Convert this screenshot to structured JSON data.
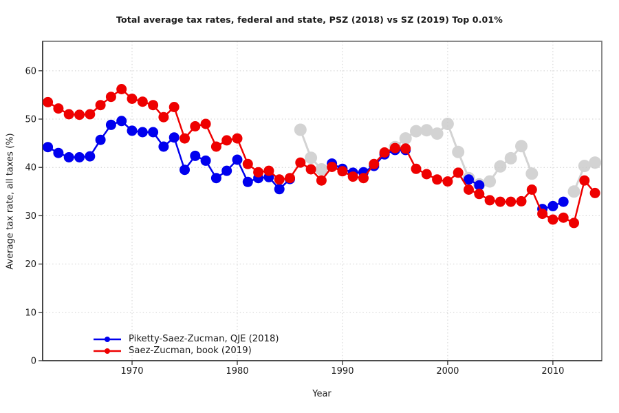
{
  "page": {
    "background": "#ffffff"
  },
  "chart_data": {
    "type": "line",
    "title": "Total average tax rates, federal and state, PSZ (2018) vs SZ (2019) Top 0.01%",
    "xlabel": "Year",
    "ylabel": "Average tax rate, all taxes (%)",
    "xlim": [
      1961.5,
      2014.65
    ],
    "ylim": [
      0,
      66.1
    ],
    "xticks": [
      1970,
      1980,
      1990,
      2000,
      2010
    ],
    "yticks": [
      0,
      10,
      20,
      30,
      40,
      50,
      60
    ],
    "grid": "dotted",
    "legend_position": "bottom-left",
    "years": [
      1962,
      1963,
      1964,
      1965,
      1966,
      1967,
      1968,
      1969,
      1970,
      1971,
      1972,
      1973,
      1974,
      1975,
      1976,
      1977,
      1978,
      1979,
      1980,
      1981,
      1982,
      1983,
      1984,
      1985,
      1986,
      1987,
      1988,
      1989,
      1990,
      1991,
      1992,
      1993,
      1994,
      1995,
      1996,
      1997,
      1998,
      1999,
      2000,
      2001,
      2002,
      2003,
      2004,
      2005,
      2006,
      2007,
      2008,
      2009,
      2010,
      2011,
      2012,
      2013,
      2014
    ],
    "series": [
      {
        "name": "unlabeled-gray",
        "in_legend": false,
        "color": "#c9c9c9",
        "opacity": 0.8,
        "line_width": 3,
        "marker_radius": 9,
        "values": [
          null,
          null,
          null,
          null,
          null,
          null,
          null,
          null,
          null,
          null,
          null,
          null,
          null,
          null,
          null,
          null,
          null,
          null,
          null,
          null,
          null,
          null,
          null,
          null,
          47.8,
          42.0,
          39.6,
          null,
          null,
          null,
          null,
          null,
          null,
          44.2,
          46.0,
          47.5,
          47.7,
          47.0,
          49.0,
          43.2,
          37.8,
          36.5,
          37.1,
          40.2,
          41.9,
          44.4,
          38.7,
          null,
          null,
          null,
          35.0,
          40.3,
          41.0
        ]
      },
      {
        "name": "Piketty-Saez-Zucman, QJE (2018)",
        "in_legend": true,
        "color": "#0000ee",
        "opacity": 1,
        "line_width": 2.5,
        "marker_radius": 7.5,
        "values": [
          44.2,
          43.0,
          42.1,
          42.1,
          42.3,
          45.7,
          48.8,
          49.6,
          47.6,
          47.3,
          47.3,
          44.3,
          46.2,
          39.5,
          42.4,
          41.4,
          37.8,
          39.3,
          41.6,
          37.0,
          37.8,
          38.0,
          35.5,
          37.6,
          null,
          null,
          null,
          40.8,
          39.7,
          38.9,
          39.0,
          40.3,
          42.7,
          43.6,
          43.6,
          null,
          null,
          null,
          null,
          null,
          37.5,
          36.3,
          null,
          null,
          null,
          null,
          null,
          31.4,
          32.0,
          32.9,
          null,
          null,
          null
        ]
      },
      {
        "name": "Saez-Zucman, book (2019)",
        "in_legend": true,
        "color": "#ee0000",
        "opacity": 1,
        "line_width": 2.5,
        "marker_radius": 7.5,
        "values": [
          53.5,
          52.2,
          51.0,
          50.9,
          51.0,
          52.9,
          54.6,
          56.2,
          54.2,
          53.6,
          52.9,
          50.4,
          52.5,
          46.0,
          48.5,
          49.0,
          44.3,
          45.6,
          46.0,
          40.7,
          39.0,
          39.3,
          37.5,
          37.8,
          41.0,
          39.6,
          37.3,
          40.1,
          39.2,
          38.1,
          37.8,
          40.7,
          43.1,
          44.0,
          43.9,
          39.7,
          38.6,
          37.5,
          37.1,
          38.9,
          35.4,
          34.5,
          33.2,
          32.9,
          32.9,
          33.0,
          35.4,
          30.4,
          29.2,
          29.6,
          28.5,
          37.3,
          34.7
        ]
      }
    ]
  }
}
